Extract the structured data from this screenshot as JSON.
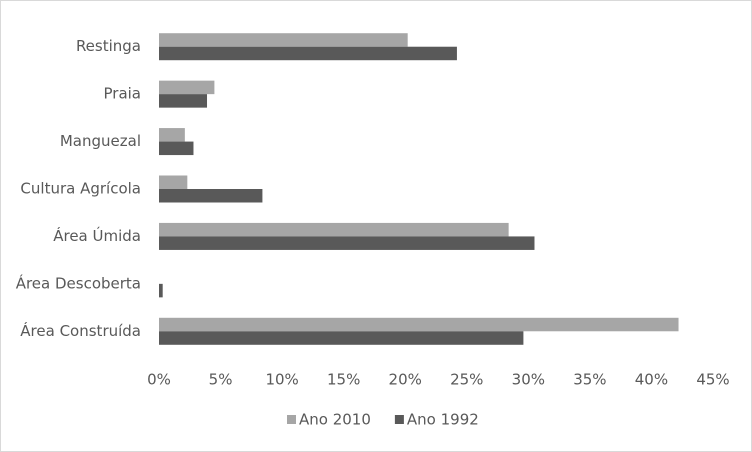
{
  "chart_data": {
    "type": "hbar",
    "categories": [
      "Restinga",
      "Praia",
      "Manguezal",
      "Cultura Agrícola",
      "Área Úmida",
      "Área Descoberta",
      "Área Construída"
    ],
    "series": [
      {
        "name": "Ano 2010",
        "color": "#a6a6a6",
        "values": [
          20.2,
          4.5,
          2.1,
          2.3,
          28.4,
          0,
          42.2
        ]
      },
      {
        "name": "Ano 1992",
        "color": "#595959",
        "values": [
          24.2,
          3.9,
          2.8,
          8.4,
          30.5,
          0.3,
          29.6
        ]
      }
    ],
    "xlim": [
      0,
      45
    ],
    "xticks": [
      {
        "value": 0,
        "label": "0%"
      },
      {
        "value": 5,
        "label": "5%"
      },
      {
        "value": 10,
        "label": "10%"
      },
      {
        "value": 15,
        "label": "15%"
      },
      {
        "value": 20,
        "label": "20%"
      },
      {
        "value": 25,
        "label": "25%"
      },
      {
        "value": 30,
        "label": "30%"
      },
      {
        "value": 35,
        "label": "35%"
      },
      {
        "value": 40,
        "label": "40%"
      },
      {
        "value": 45,
        "label": "45%"
      }
    ],
    "legend": "bottom"
  }
}
